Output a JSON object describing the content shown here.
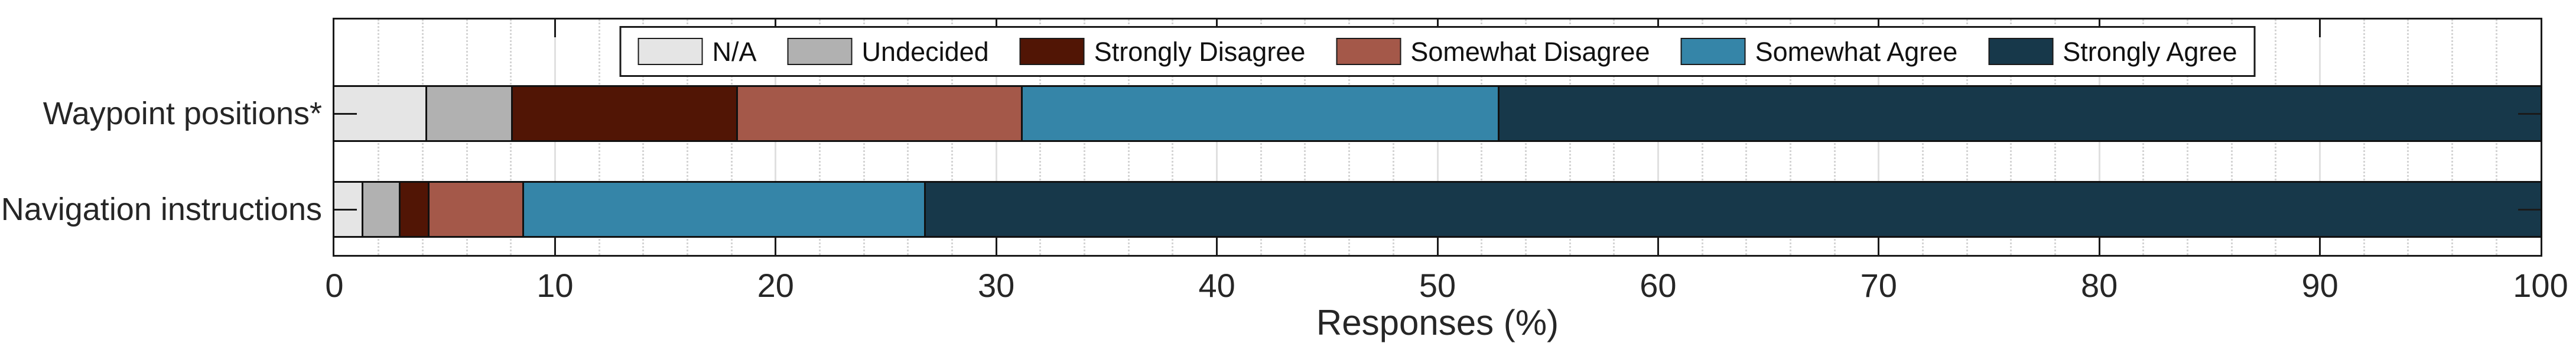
{
  "chart_data": {
    "type": "bar",
    "orientation": "horizontal-stacked",
    "title": "",
    "xlabel": "Responses (%)",
    "ylabel": "",
    "categories": [
      "Waypoint positions*",
      "Navigation instructions"
    ],
    "series": [
      {
        "name": "N/A",
        "color": "#e5e5e5",
        "values": [
          4.2,
          1.3
        ]
      },
      {
        "name": "Undecided",
        "color": "#b1b1b1",
        "values": [
          3.9,
          1.7
        ]
      },
      {
        "name": "Strongly Disagree",
        "color": "#511505",
        "values": [
          10.2,
          1.3
        ]
      },
      {
        "name": "Somewhat Disagree",
        "color": "#a45849",
        "values": [
          12.9,
          4.3
        ]
      },
      {
        "name": "Somewhat Agree",
        "color": "#3585a8",
        "values": [
          21.6,
          18.2
        ]
      },
      {
        "name": "Strongly Agree",
        "color": "#17384a",
        "values": [
          47.2,
          73.2
        ]
      }
    ],
    "xlim": [
      0,
      100
    ],
    "xticks": [
      0,
      10,
      20,
      30,
      40,
      50,
      60,
      70,
      80,
      90,
      100
    ],
    "minor_grid_step": 2,
    "grid": "on",
    "legend_position": "north",
    "axis_color": "#1a1a1a",
    "grid_major_color": "#e0e0e0",
    "grid_minor_color": "#d4d4d4"
  }
}
